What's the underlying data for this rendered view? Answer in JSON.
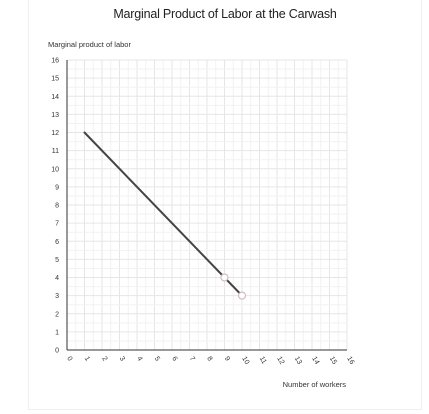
{
  "chart_data": {
    "type": "line",
    "title": "Marginal Product of Labor at the Carwash",
    "xlabel": "Number of workers",
    "ylabel": "Marginal product of labor",
    "xlim": [
      0,
      16
    ],
    "ylim": [
      0,
      16
    ],
    "x_ticks": [
      "0",
      "1",
      "2",
      "3",
      "4",
      "5",
      "6",
      "7",
      "8",
      "9",
      "10",
      "11",
      "12",
      "13",
      "14",
      "15",
      "16"
    ],
    "y_ticks": [
      "0",
      "1",
      "2",
      "3",
      "4",
      "5",
      "6",
      "7",
      "8",
      "9",
      "10",
      "11",
      "12",
      "13",
      "14",
      "15",
      "16"
    ],
    "grid": true,
    "series": [
      {
        "color": "#444444",
        "x": [
          1,
          10
        ],
        "y": [
          12,
          3
        ]
      }
    ],
    "markers": [
      {
        "x": 9,
        "y": 4
      },
      {
        "x": 10,
        "y": 3
      }
    ]
  }
}
